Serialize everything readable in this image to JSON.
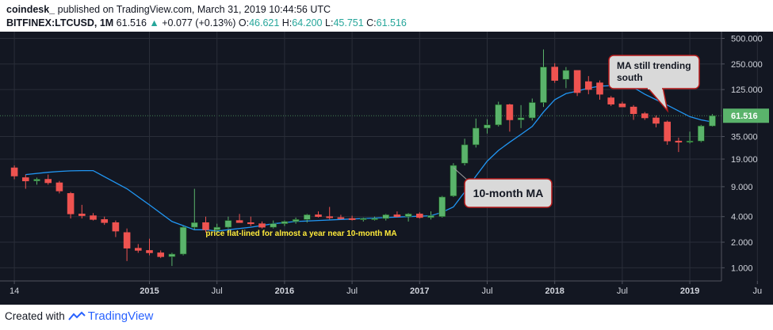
{
  "header": {
    "brand": "coindesk_",
    "published": " published on TradingView.com, March 31, 2019 10:44:56 UTC",
    "symbol": "BITFINEX:LTCUSD, 1M",
    "last": "61.516",
    "change": "+0.077 (+0.13%)",
    "o_label": "O:",
    "o": "46.621",
    "h_label": "H:",
    "h": "64.200",
    "l_label": "L:",
    "l": "45.751",
    "c_label": "C:",
    "c": "61.516"
  },
  "footer": {
    "created": "Created with",
    "brand": "TradingView"
  },
  "colors": {
    "up": "#5ab36b",
    "down": "#ef5350",
    "ma": "#2196f3",
    "bg": "#131722",
    "grid": "#2a2e39",
    "price": "#5ab36b"
  },
  "chart_data": {
    "type": "candlestick",
    "scale": "log",
    "ylim": [
      0.7,
      600
    ],
    "y_ticks": [
      "500.000",
      "250.000",
      "125.000",
      "61.516",
      "35.000",
      "19.000",
      "9.000",
      "4.000",
      "2.000",
      "1.000"
    ],
    "y_tick_values": [
      500,
      250,
      125,
      61.516,
      35,
      19,
      9,
      4,
      2,
      1
    ],
    "x_ticks": [
      "14",
      "2015",
      "Jul",
      "2016",
      "Jul",
      "2017",
      "Jul",
      "2018",
      "Jul",
      "2019",
      "Ju"
    ],
    "x_tick_months": [
      -1,
      11,
      17,
      23,
      29,
      35,
      41,
      47,
      53,
      59,
      65
    ],
    "current_price": "61.516",
    "candles": [
      {
        "m": -1,
        "o": 15,
        "h": 16,
        "l": 11,
        "c": 12
      },
      {
        "m": 0,
        "o": 11.5,
        "h": 12.5,
        "l": 8.5,
        "c": 10.5
      },
      {
        "m": 1,
        "o": 10.5,
        "h": 11.5,
        "l": 9.5,
        "c": 11
      },
      {
        "m": 2,
        "o": 11,
        "h": 12.5,
        "l": 9.5,
        "c": 10
      },
      {
        "m": 3,
        "o": 10,
        "h": 10.5,
        "l": 7.5,
        "c": 8
      },
      {
        "m": 4,
        "o": 7.5,
        "h": 7.8,
        "l": 3.8,
        "c": 4.3
      },
      {
        "m": 5,
        "o": 4.3,
        "h": 5.5,
        "l": 3.8,
        "c": 4.1
      },
      {
        "m": 6,
        "o": 4.1,
        "h": 4.4,
        "l": 3.6,
        "c": 3.7
      },
      {
        "m": 7,
        "o": 3.7,
        "h": 4.0,
        "l": 3.2,
        "c": 3.4
      },
      {
        "m": 8,
        "o": 3.4,
        "h": 3.6,
        "l": 2.3,
        "c": 2.7
      },
      {
        "m": 9,
        "o": 2.6,
        "h": 2.9,
        "l": 1.2,
        "c": 1.7
      },
      {
        "m": 10,
        "o": 1.7,
        "h": 1.9,
        "l": 1.5,
        "c": 1.6
      },
      {
        "m": 11,
        "o": 1.6,
        "h": 2.2,
        "l": 1.4,
        "c": 1.5
      },
      {
        "m": 12,
        "o": 1.5,
        "h": 1.6,
        "l": 1.3,
        "c": 1.35
      },
      {
        "m": 13,
        "o": 1.35,
        "h": 1.5,
        "l": 1.05,
        "c": 1.45
      },
      {
        "m": 14,
        "o": 1.45,
        "h": 3.1,
        "l": 1.4,
        "c": 3.0
      },
      {
        "m": 15,
        "o": 3.0,
        "h": 8.5,
        "l": 2.8,
        "c": 3.4
      },
      {
        "m": 16,
        "o": 3.4,
        "h": 4.0,
        "l": 2.6,
        "c": 2.8
      },
      {
        "m": 17,
        "o": 2.8,
        "h": 3.3,
        "l": 2.6,
        "c": 3.0
      },
      {
        "m": 18,
        "o": 3.0,
        "h": 4.0,
        "l": 2.9,
        "c": 3.6
      },
      {
        "m": 19,
        "o": 3.6,
        "h": 4.3,
        "l": 3.4,
        "c": 3.4
      },
      {
        "m": 20,
        "o": 3.4,
        "h": 4.0,
        "l": 3.1,
        "c": 3.3
      },
      {
        "m": 21,
        "o": 3.3,
        "h": 3.5,
        "l": 2.9,
        "c": 3.0
      },
      {
        "m": 22,
        "o": 3.0,
        "h": 3.6,
        "l": 2.9,
        "c": 3.3
      },
      {
        "m": 23,
        "o": 3.3,
        "h": 3.6,
        "l": 3.1,
        "c": 3.5
      },
      {
        "m": 24,
        "o": 3.5,
        "h": 3.9,
        "l": 3.3,
        "c": 3.7
      },
      {
        "m": 25,
        "o": 3.7,
        "h": 4.3,
        "l": 3.4,
        "c": 4.2
      },
      {
        "m": 26,
        "o": 4.2,
        "h": 4.6,
        "l": 3.9,
        "c": 4.0
      },
      {
        "m": 27,
        "o": 4.0,
        "h": 5.2,
        "l": 3.7,
        "c": 3.9
      },
      {
        "m": 28,
        "o": 3.9,
        "h": 4.2,
        "l": 3.7,
        "c": 3.8
      },
      {
        "m": 29,
        "o": 3.8,
        "h": 4.1,
        "l": 3.6,
        "c": 3.7
      },
      {
        "m": 30,
        "o": 3.7,
        "h": 3.9,
        "l": 3.5,
        "c": 3.8
      },
      {
        "m": 31,
        "o": 3.8,
        "h": 4.0,
        "l": 3.6,
        "c": 3.8
      },
      {
        "m": 32,
        "o": 3.8,
        "h": 4.3,
        "l": 3.6,
        "c": 4.2
      },
      {
        "m": 33,
        "o": 4.2,
        "h": 4.6,
        "l": 3.9,
        "c": 4.0
      },
      {
        "m": 34,
        "o": 4.0,
        "h": 4.4,
        "l": 3.5,
        "c": 4.3
      },
      {
        "m": 35,
        "o": 4.3,
        "h": 4.5,
        "l": 3.8,
        "c": 3.9
      },
      {
        "m": 36,
        "o": 3.9,
        "h": 4.6,
        "l": 3.7,
        "c": 4.1
      },
      {
        "m": 37,
        "o": 4.0,
        "h": 7.0,
        "l": 3.9,
        "c": 6.8
      },
      {
        "m": 38,
        "o": 7.0,
        "h": 17,
        "l": 6.8,
        "c": 16
      },
      {
        "m": 39,
        "o": 17,
        "h": 33,
        "l": 16,
        "c": 28
      },
      {
        "m": 40,
        "o": 28,
        "h": 57,
        "l": 26,
        "c": 44
      },
      {
        "m": 41,
        "o": 44,
        "h": 56,
        "l": 38,
        "c": 48
      },
      {
        "m": 42,
        "o": 48,
        "h": 90,
        "l": 46,
        "c": 83
      },
      {
        "m": 43,
        "o": 83,
        "h": 85,
        "l": 40,
        "c": 55
      },
      {
        "m": 44,
        "o": 55,
        "h": 82,
        "l": 44,
        "c": 58
      },
      {
        "m": 45,
        "o": 58,
        "h": 98,
        "l": 54,
        "c": 88
      },
      {
        "m": 46,
        "o": 88,
        "h": 370,
        "l": 78,
        "c": 230
      },
      {
        "m": 47,
        "o": 230,
        "h": 255,
        "l": 150,
        "c": 160
      },
      {
        "m": 48,
        "o": 165,
        "h": 230,
        "l": 130,
        "c": 210
      },
      {
        "m": 49,
        "o": 210,
        "h": 210,
        "l": 105,
        "c": 115
      },
      {
        "m": 50,
        "o": 155,
        "h": 180,
        "l": 110,
        "c": 125
      },
      {
        "m": 51,
        "o": 150,
        "h": 160,
        "l": 95,
        "c": 110
      },
      {
        "m": 52,
        "o": 100,
        "h": 105,
        "l": 80,
        "c": 84
      },
      {
        "m": 53,
        "o": 85,
        "h": 90,
        "l": 80,
        "c": 78
      },
      {
        "m": 54,
        "o": 78,
        "h": 82,
        "l": 55,
        "c": 65
      },
      {
        "m": 55,
        "o": 65,
        "h": 68,
        "l": 55,
        "c": 58
      },
      {
        "m": 56,
        "o": 58,
        "h": 62,
        "l": 45,
        "c": 50
      },
      {
        "m": 57,
        "o": 52,
        "h": 54,
        "l": 28,
        "c": 31
      },
      {
        "m": 58,
        "o": 31,
        "h": 34,
        "l": 23,
        "c": 30
      },
      {
        "m": 59,
        "o": 30.5,
        "h": 40,
        "l": 29,
        "c": 31
      },
      {
        "m": 60,
        "o": 31,
        "h": 48,
        "l": 30,
        "c": 46.6
      },
      {
        "m": 61,
        "o": 46.621,
        "h": 64.2,
        "l": 45.751,
        "c": 61.516
      }
    ],
    "ma": {
      "label": "10-month MA",
      "points": [
        [
          0,
          12.5
        ],
        [
          2,
          13.3
        ],
        [
          3,
          13.6
        ],
        [
          4,
          13.8
        ],
        [
          5,
          13.9
        ],
        [
          6,
          13.9
        ],
        [
          9,
          8.5
        ],
        [
          11,
          5.5
        ],
        [
          13,
          3.5
        ],
        [
          15,
          2.8
        ],
        [
          16,
          2.8
        ],
        [
          17,
          2.7
        ],
        [
          18,
          2.8
        ],
        [
          20,
          3.0
        ],
        [
          22,
          3.3
        ],
        [
          24,
          3.5
        ],
        [
          26,
          3.6
        ],
        [
          28,
          3.7
        ],
        [
          30,
          3.8
        ],
        [
          32,
          3.9
        ],
        [
          34,
          4.0
        ],
        [
          36,
          4.1
        ],
        [
          37,
          4.5
        ],
        [
          38,
          5.2
        ],
        [
          39,
          7.8
        ],
        [
          40,
          12
        ],
        [
          41,
          18
        ],
        [
          42,
          24
        ],
        [
          43,
          30
        ],
        [
          44,
          37
        ],
        [
          45,
          46
        ],
        [
          46,
          68
        ],
        [
          47,
          95
        ],
        [
          48,
          112
        ],
        [
          49,
          120
        ],
        [
          50,
          130
        ],
        [
          51,
          137
        ],
        [
          52,
          139
        ],
        [
          53,
          138
        ],
        [
          54,
          132
        ],
        [
          55,
          110
        ],
        [
          56,
          95
        ],
        [
          57,
          82
        ],
        [
          58,
          70
        ],
        [
          59,
          60
        ],
        [
          60,
          55
        ],
        [
          61,
          52
        ]
      ]
    },
    "annotations": [
      {
        "text": "price flat-lined for almost a year near 10-month MA"
      },
      {
        "text": "10-month MA"
      },
      {
        "text": "MA still trending south"
      }
    ]
  },
  "annotations": {
    "flat": "price flat-lined for almost a year near 10-month MA",
    "ma_label": "10-month MA",
    "south_1": "MA still trending",
    "south_2": "south"
  }
}
